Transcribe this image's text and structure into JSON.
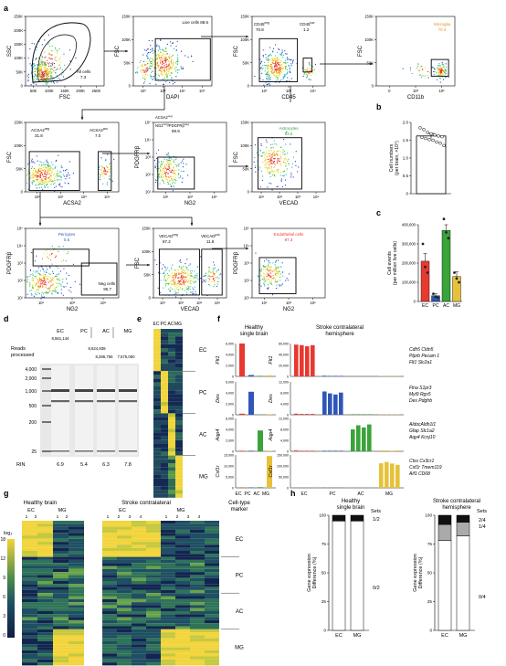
{
  "colors": {
    "ec": "#e8392f",
    "pc": "#2f56b8",
    "ac": "#3aa33a",
    "mg": "#e6c23a",
    "microglia": "#e0922d",
    "heat_low": "#1a2a55",
    "heat_high": "#f2d43c"
  },
  "a": {
    "label": "a",
    "p1": {
      "xlabel": "FSC",
      "ylabel": "SSC",
      "gate": "All cells",
      "val": "7.3",
      "xt": [
        "50K",
        "100K",
        "150K",
        "200K",
        "250K"
      ],
      "yt": [
        "0",
        "50K",
        "100K",
        "150K",
        "200K",
        "250K"
      ]
    },
    "p2": {
      "xlabel": "DAPI",
      "ylabel": "FSC",
      "gate": "Live cells 88.6",
      "xt": [
        "10²",
        "10³",
        "10⁴",
        "10⁵"
      ],
      "yt": [
        "0",
        "50K",
        "100K",
        "150K"
      ]
    },
    "p3": {
      "xlabel": "CD45",
      "ylabel": "FSC",
      "g1": "CD45",
      "g1s": "neg",
      "g1v": "70.8",
      "g2": "CD45",
      "g2s": "low",
      "g2v": "1.2",
      "xt": [
        "10²",
        "10³",
        "10⁴"
      ],
      "yt": [
        "0",
        "50K",
        "100K",
        "150K"
      ]
    },
    "p4": {
      "xlabel": "CD11b",
      "ylabel": "FSC",
      "gate": "Microglia",
      "val": "70.3",
      "xt": [
        "0",
        "10³",
        "10⁵"
      ],
      "yt": [
        "0",
        "50K",
        "100K",
        "150K"
      ]
    },
    "p5": {
      "xlabel": "ACSA2",
      "ylabel": "FSC",
      "g1": "ACSA2",
      "g1s": "neg",
      "g1v": "31.8",
      "g2": "ACSA2",
      "g2s": "pos",
      "g2v": "7.0",
      "xt": [
        "10¹",
        "10²",
        "10³",
        "10⁴"
      ],
      "yt": [
        "0",
        "50K",
        "100K",
        "150K"
      ]
    },
    "p6": {
      "xlabel": "NG2",
      "ylabel": "PDGFRβ",
      "gl1": "ACSA2",
      "gl1s": "neg",
      "gl2": "NG2",
      "gl2s": "neg",
      "gl3": "/PDGFRβ",
      "gl3s": "neg",
      "val": "98.9",
      "xt": [
        "10¹",
        "10³",
        "10⁵"
      ],
      "yt": [
        "10¹",
        "10²",
        "10³",
        "10⁴",
        "10⁵"
      ]
    },
    "p7": {
      "xlabel": "VECAD",
      "ylabel": "FSC",
      "gate": "Astrocytes",
      "val": "93.5",
      "xt": [
        "10¹",
        "10²",
        "10³",
        "10⁴"
      ],
      "yt": [
        "0",
        "50K",
        "100K",
        "150K"
      ]
    },
    "p8": {
      "xlabel": "NG2",
      "ylabel": "PDGFRβ",
      "gate": "Pericytes",
      "val": "0.5",
      "neg": "Neg cells",
      "negv": "95.7",
      "xt": [
        "10¹",
        "10³",
        "10⁵"
      ],
      "yt": [
        "10¹",
        "10²",
        "10³",
        "10⁴",
        "10⁵"
      ]
    },
    "p9": {
      "xlabel": "VECAD",
      "ylabel": "FSC",
      "g1": "VECAD",
      "g1s": "neg",
      "g1v": "87.2",
      "g2": "VECAD",
      "g2s": "pos",
      "g2v": "11.8",
      "xt": [
        "10¹",
        "10²",
        "10³",
        "10⁴"
      ],
      "yt": [
        "0",
        "50K",
        "100K",
        "150K"
      ]
    },
    "p10": {
      "xlabel": "NG2",
      "ylabel": "PDGFRβ",
      "gate": "Endothelial cells",
      "val": "97.3",
      "xt": [
        "10¹",
        "10³",
        "10⁵"
      ],
      "yt": [
        "10¹",
        "10²",
        "10³",
        "10⁴",
        "10⁵"
      ]
    }
  },
  "b": {
    "label": "b",
    "ylabel": "Cell numbers\n(per brain, ×10⁵)",
    "yt": [
      "0",
      "0.5",
      "1.0",
      "1.5",
      "2.0"
    ],
    "mean": 1.62,
    "sem": 0.07,
    "points": [
      1.85,
      1.8,
      1.72,
      1.68,
      1.65,
      1.62,
      1.6,
      1.58,
      1.55,
      1.52,
      1.5,
      1.45,
      1.42,
      1.35
    ]
  },
  "c": {
    "label": "c",
    "ylabel": "Cell events\n(per million live cells)",
    "yt": [
      "0",
      "100,000",
      "200,000",
      "300,000",
      "400,000"
    ],
    "categories": [
      "EC",
      "PC",
      "AC",
      "MG"
    ],
    "values": [
      210000,
      30000,
      370000,
      130000
    ],
    "errors": [
      40000,
      10000,
      30000,
      25000
    ],
    "points": [
      [
        300000,
        180000,
        150000
      ],
      [
        40000,
        25000,
        20000
      ],
      [
        430000,
        360000,
        330000
      ],
      [
        150000,
        120000,
        100000
      ]
    ]
  },
  "d": {
    "label": "d",
    "reads_label": "Reads\nprocessed",
    "lanes": [
      "EC",
      "PC",
      "AC",
      "MG"
    ],
    "reads": [
      "8,561,144",
      "8,286,755",
      "8,624,939",
      "7,575,060"
    ],
    "ladder": [
      "4,000",
      "2,000",
      "1,000",
      "500",
      "200",
      "25"
    ],
    "rin_label": "RIN",
    "rin": [
      "6.9",
      "5.4",
      "6.3",
      "7.8"
    ]
  },
  "e": {
    "label": "e",
    "cols": [
      "EC",
      "PC",
      "AC",
      "MG"
    ],
    "groups": [
      "EC",
      "PC",
      "AC",
      "MG"
    ]
  },
  "f": {
    "label": "f",
    "title_left": "Healthy\nsingle brain",
    "title_right": "Stroke contralateral\nhemisphere",
    "genes": [
      "Flt1",
      "Des",
      "Aqp4",
      "Csf1r"
    ],
    "left_yt": [
      [
        "0",
        "2,000",
        "4,000",
        "6,000"
      ],
      [
        "0",
        "2,000",
        "4,000",
        "6,000"
      ],
      [
        "0",
        "2,000",
        "4,000",
        "6,000"
      ],
      [
        "0",
        "5,000",
        "10,000",
        "15,000"
      ]
    ],
    "right_yt": [
      [
        "0",
        "20,000",
        "40,000",
        "60,000"
      ],
      [
        "0",
        "4,000",
        "8,000",
        "12,000"
      ],
      [
        "0",
        "4,000",
        "8,000",
        "12,000"
      ],
      [
        "0",
        "50,000",
        "100,000",
        "150,000"
      ]
    ],
    "left_values": [
      [
        6100,
        250,
        100,
        200
      ],
      [
        200,
        4200,
        80,
        100
      ],
      [
        100,
        100,
        3800,
        100
      ],
      [
        200,
        200,
        300,
        14500
      ]
    ],
    "right_values": [
      [
        58000,
        57000,
        55000,
        57000,
        1200,
        900,
        1000,
        900,
        400,
        500,
        300,
        400,
        600,
        500,
        400,
        500
      ],
      [
        400,
        300,
        300,
        300,
        8500,
        7800,
        7400,
        8100,
        200,
        200,
        200,
        200,
        100,
        100,
        100,
        100
      ],
      [
        300,
        200,
        200,
        200,
        200,
        200,
        200,
        200,
        8000,
        9500,
        8700,
        9800,
        300,
        300,
        200,
        300
      ],
      [
        800,
        900,
        700,
        800,
        900,
        700,
        800,
        700,
        900,
        800,
        900,
        900,
        112000,
        118000,
        111000,
        105000
      ]
    ],
    "markers": [
      [
        "Cdh5 Cldn5",
        "Ptprb Pecam 1",
        "Flt1  Slc2a1"
      ],
      [
        "Flna  S1pr3",
        "Myl9  Rgs5",
        "Des   Pdgfrb"
      ],
      [
        "AldocAldh1l1",
        "Gfap  Slc1a2",
        "Aqp4 Kcnj10"
      ],
      [
        "Ctss  Cx3cr1",
        "Csf1r  Tmem119",
        "Aif1   CD68"
      ]
    ],
    "xlabels_left": [
      "EC",
      "PC",
      "AC",
      "MG"
    ],
    "xlabels_right": [
      "EC",
      "PC",
      "AC",
      "MG"
    ]
  },
  "g": {
    "label": "g",
    "title_left": "Healthy brain",
    "title_right": "Stroke contralateral",
    "cell_type_label": "Cell-type\nmarker",
    "log_label": "log₂",
    "scale": [
      "18",
      "12",
      "9",
      "6",
      "3",
      "0"
    ],
    "left_groups": [
      {
        "name": "EC",
        "reps": [
          "1",
          "2"
        ]
      },
      {
        "name": "MG",
        "reps": [
          "1",
          "2"
        ]
      }
    ],
    "right_groups": [
      {
        "name": "EC",
        "reps": [
          "1",
          "2",
          "3",
          "4"
        ]
      },
      {
        "name": "MG",
        "reps": [
          "1",
          "2",
          "3",
          "4"
        ]
      }
    ],
    "row_groups": [
      "EC",
      "PC",
      "AC",
      "MG"
    ]
  },
  "h": {
    "label": "h",
    "title_left": "Healthy\nsingle brain",
    "title_right": "Stroke contralateral\nhemisphere",
    "ylabel": "Gene expression\nDifference (%)",
    "yt": [
      "0",
      "25",
      "50",
      "75",
      "100"
    ],
    "left": {
      "categories": [
        "EC",
        "MG"
      ],
      "series": [
        {
          "name": "0/2",
          "values": [
            95,
            95
          ]
        },
        {
          "name": "1/2",
          "values": [
            5,
            5
          ]
        }
      ],
      "sets_label": "Sets"
    },
    "right": {
      "categories": [
        "EC",
        "MG"
      ],
      "series": [
        {
          "name": "0/4",
          "values": [
            78,
            82
          ]
        },
        {
          "name": "1/4",
          "values": [
            14,
            12
          ]
        },
        {
          "name": "2/4",
          "values": [
            8,
            6
          ]
        }
      ],
      "sets_label": "Sets"
    }
  }
}
